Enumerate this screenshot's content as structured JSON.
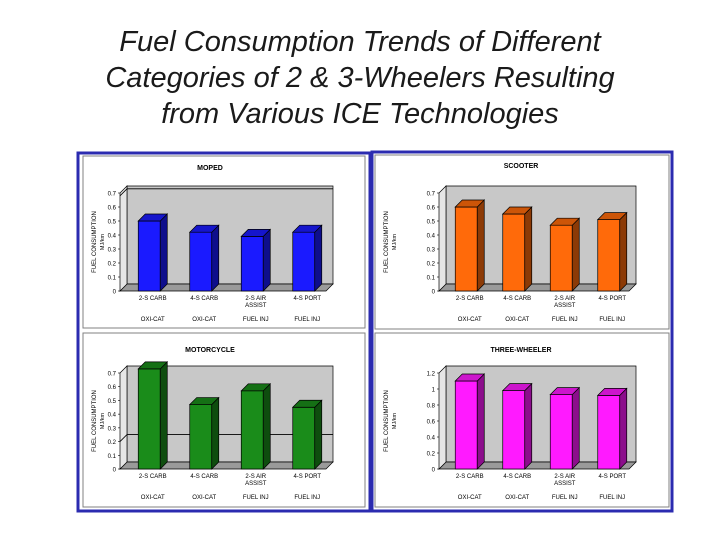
{
  "slide": {
    "title_lines": [
      "Fuel Consumption Trends of Different",
      "Categories of 2 & 3-Wheelers Resulting",
      "from Various ICE Technologies"
    ]
  },
  "colors": {
    "frame": "#2b2bb0",
    "plot_bg": "#c8c8c8",
    "moped": "#1a1aff",
    "scooter": "#ff6a0a",
    "motorcycle": "#1a8c1a",
    "three_wheeler": "#ff1aff"
  },
  "chart_data": [
    {
      "type": "bar",
      "title": "MOPED",
      "ylabel": [
        "FUEL CONSUMPTION",
        "MJ/km"
      ],
      "ylim": [
        0,
        0.7
      ],
      "yticks": [
        "0",
        "0.1",
        "0.2",
        "0.3",
        "0.4",
        "0.5",
        "0.6",
        "0.7"
      ],
      "categories": [
        "2-S CARB",
        "4-S CARB",
        "2-S AIR ASSIST",
        "4-S PORT"
      ],
      "secondary_labels": [
        "OXI-CAT",
        "OXI-CAT",
        "FUEL INJ",
        "FUEL INJ"
      ],
      "values": [
        0.5,
        0.42,
        0.39,
        0.42
      ],
      "reference_line": 0.68,
      "color": "#1a1aff"
    },
    {
      "type": "bar",
      "title": "SCOOTER",
      "ylabel": [
        "FUEL CONSUMPTION",
        "MJ/km"
      ],
      "ylim": [
        0,
        0.7
      ],
      "yticks": [
        "0",
        "0.1",
        "0.2",
        "0.3",
        "0.4",
        "0.5",
        "0.6",
        "0.7"
      ],
      "categories": [
        "2-S CARB",
        "4-S CARB",
        "2-S AIR ASSIST",
        "4-S PORT"
      ],
      "secondary_labels": [
        "OXI-CAT",
        "OXI-CAT",
        "FUEL INJ",
        "FUEL INJ"
      ],
      "values": [
        0.6,
        0.55,
        0.47,
        0.51
      ],
      "color": "#ff6a0a"
    },
    {
      "type": "bar",
      "title": "MOTORCYCLE",
      "ylabel": [
        "FUEL CONSUMPTION",
        "MJ/km"
      ],
      "ylim": [
        0,
        0.7
      ],
      "yticks": [
        "0",
        "0.1",
        "0.2",
        "0.3",
        "0.4",
        "0.5",
        "0.6",
        "0.7"
      ],
      "categories": [
        "2-S CARB",
        "4-S CARB",
        "2-S AIR ASSIST",
        "4-S PORT"
      ],
      "secondary_labels": [
        "OXI-CAT",
        "OXI-CAT",
        "FUEL INJ",
        "FUEL INJ"
      ],
      "values": [
        0.73,
        0.47,
        0.57,
        0.45
      ],
      "reference_line": 0.2,
      "color": "#1a8c1a"
    },
    {
      "type": "bar",
      "title": "THREE-WHEELER",
      "ylabel": [
        "FUEL CONSUMPTION",
        "MJ/km"
      ],
      "ylim": [
        0,
        1.2
      ],
      "yticks": [
        "0",
        "0.2",
        "0.4",
        "0.6",
        "0.8",
        "1",
        "1.2"
      ],
      "categories": [
        "2-S CARB",
        "4-S CARB",
        "2-S AIR ASSIST",
        "4-S PORT"
      ],
      "secondary_labels": [
        "OXI-CAT",
        "OXI-CAT",
        "FUEL INJ",
        "FUEL INJ"
      ],
      "values": [
        1.1,
        0.98,
        0.93,
        0.92
      ],
      "color": "#ff1aff"
    }
  ]
}
